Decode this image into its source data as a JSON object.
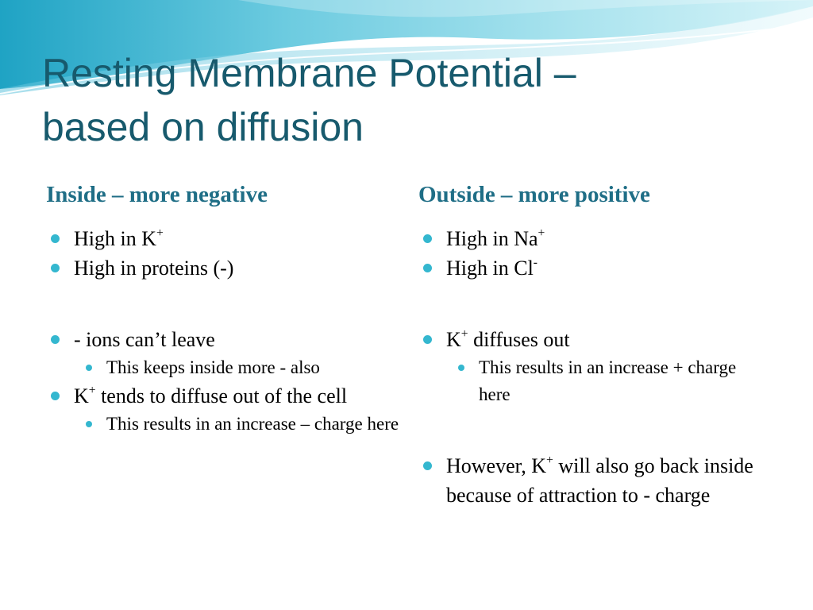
{
  "slide": {
    "title_line1": "Resting Membrane Potential –",
    "title_line2": "based on diffusion"
  },
  "left": {
    "heading": "Inside – more negative",
    "b1_text": "High in K",
    "b1_sup": "+",
    "b2_text": "High in proteins (-)",
    "b3_text": "- ions can’t leave",
    "b3_sub": "This keeps inside more - also",
    "b4_k": "K",
    "b4_sup": "+",
    "b4_text": " tends to diffuse out of the cell",
    "b4_sub": "This results in an increase – charge here"
  },
  "right": {
    "heading": "Outside – more positive",
    "b1_text": "High in Na",
    "b1_sup": "+",
    "b2_text": "High in Cl",
    "b2_sup": "-",
    "b3_k": "K",
    "b3_sup": "+",
    "b3_text": " diffuses out",
    "b3_sub": "This results in an increase + charge here",
    "b4_pre": "However, K",
    "b4_sup": "+",
    "b4_text": " will also go back inside because of attraction to - charge"
  },
  "colors": {
    "title": "#175a6d",
    "heading": "#1f6e86",
    "bullet": "#34b7cf",
    "wave": "#8fd6e6"
  }
}
